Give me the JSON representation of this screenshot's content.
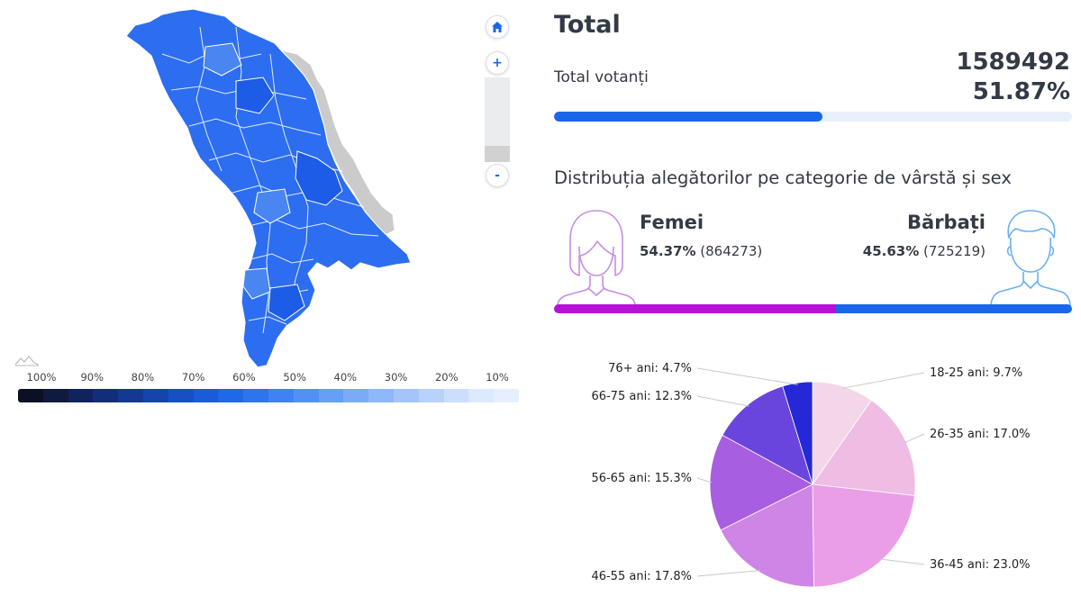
{
  "map": {
    "legend": [
      "100%",
      "90%",
      "80%",
      "70%",
      "60%",
      "50%",
      "40%",
      "30%",
      "20%",
      "10%"
    ],
    "legend_colors": [
      "#0b1022",
      "#0f1a3e",
      "#11235c",
      "#122d7a",
      "#143894",
      "#1544ad",
      "#1650c4",
      "#1a5cd8",
      "#1f68e6",
      "#2d75ee",
      "#3f82f3",
      "#5290f6",
      "#669ef8",
      "#7aabf9",
      "#8eb8fa",
      "#a3c5fb",
      "#b7d2fc",
      "#cbdffd",
      "#dce9fe",
      "#e6efff"
    ],
    "region_color": "#2d6ef0",
    "region_dark": "#1d5ce6",
    "region_light": "#4a86f2",
    "inactive_color": "#cbcbcb",
    "zoom_in": "+",
    "zoom_out": "-"
  },
  "summary": {
    "title": "Total",
    "voters_label": "Total votanți",
    "voters_count": "1589492",
    "turnout_pct": "51.87%",
    "turnout_value": 51.87,
    "accent": "#1a66e8"
  },
  "distribution": {
    "title": "Distribuția alegătorilor pe categorie de vârstă și sex",
    "female": {
      "label": "Femei",
      "pct": "54.37%",
      "count": "(864273)",
      "value": 54.37,
      "color": "#b712d4",
      "icon_color": "#c68de3"
    },
    "male": {
      "label": "Bărbați",
      "pct": "45.63%",
      "count": "(725219)",
      "value": 45.63,
      "color": "#1a66e8",
      "icon_color": "#6ab0f0"
    }
  },
  "chart_data": {
    "type": "pie",
    "labels": [
      "18-25 ani: 9.7%",
      "26-35 ani: 17.0%",
      "36-45 ani: 23.0%",
      "46-55 ani: 17.8%",
      "56-65 ani: 15.3%",
      "66-75 ani: 12.3%",
      "76+ ani: 4.7%"
    ],
    "categories": [
      "18-25 ani",
      "26-35 ani",
      "36-45 ani",
      "46-55 ani",
      "56-65 ani",
      "66-75 ani",
      "76+ ani"
    ],
    "values": [
      9.7,
      17.0,
      23.0,
      17.8,
      15.3,
      12.3,
      4.7
    ],
    "colors": [
      "#f3d6e8",
      "#efbce3",
      "#ea9ee8",
      "#cf85e6",
      "#a85ee0",
      "#6a45dd",
      "#2528d6"
    ]
  }
}
